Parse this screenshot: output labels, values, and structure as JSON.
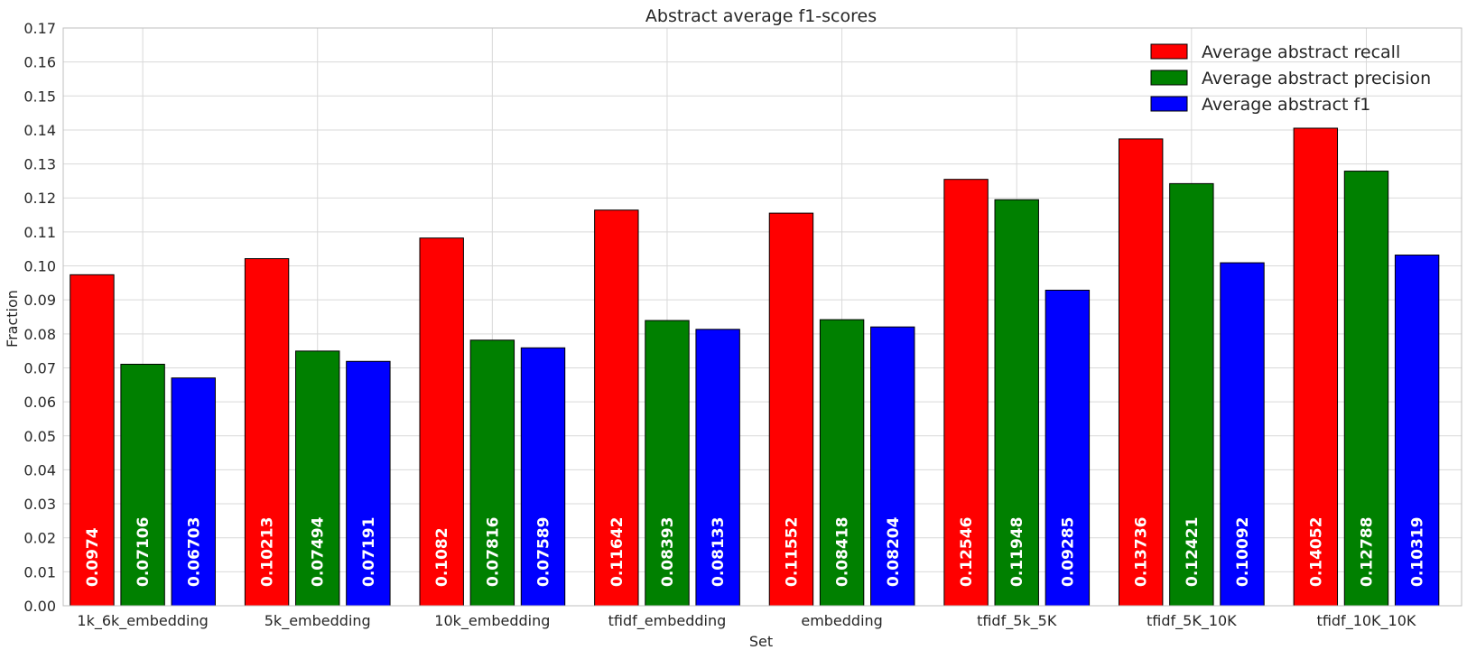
{
  "chart_data": {
    "type": "bar",
    "title": "Abstract average f1-scores",
    "xlabel": "Set",
    "ylabel": "Fraction",
    "ylim": [
      0,
      0.17
    ],
    "yticks": [
      "0.00",
      "0.01",
      "0.02",
      "0.03",
      "0.04",
      "0.05",
      "0.06",
      "0.07",
      "0.08",
      "0.09",
      "0.10",
      "0.11",
      "0.12",
      "0.13",
      "0.14",
      "0.15",
      "0.16",
      "0.17"
    ],
    "grid": true,
    "legend_position": "top-right",
    "categories": [
      "1k_6k_embedding",
      "5k_embedding",
      "10k_embedding",
      "tfidf_embedding",
      "embedding",
      "tfidf_5k_5K",
      "tfidf_5K_10K",
      "tfidf_10K_10K"
    ],
    "series": [
      {
        "name": "Average abstract recall",
        "color": "#ff0000",
        "values": [
          0.0974,
          0.10213,
          0.1082,
          0.11642,
          0.11552,
          0.12546,
          0.13736,
          0.14052
        ],
        "labels": [
          "0.0974",
          "0.10213",
          "0.1082",
          "0.11642",
          "0.11552",
          "0.12546",
          "0.13736",
          "0.14052"
        ]
      },
      {
        "name": "Average abstract precision",
        "color": "#008000",
        "values": [
          0.07106,
          0.07494,
          0.07816,
          0.08393,
          0.08418,
          0.11948,
          0.12421,
          0.12788
        ],
        "labels": [
          "0.07106",
          "0.07494",
          "0.07816",
          "0.08393",
          "0.08418",
          "0.11948",
          "0.12421",
          "0.12788"
        ]
      },
      {
        "name": "Average abstract f1",
        "color": "#0000ff",
        "values": [
          0.06703,
          0.07191,
          0.07589,
          0.08133,
          0.08204,
          0.09285,
          0.10092,
          0.10319
        ],
        "labels": [
          "0.06703",
          "0.07191",
          "0.07589",
          "0.08133",
          "0.08204",
          "0.09285",
          "0.10092",
          "0.10319"
        ]
      }
    ]
  }
}
